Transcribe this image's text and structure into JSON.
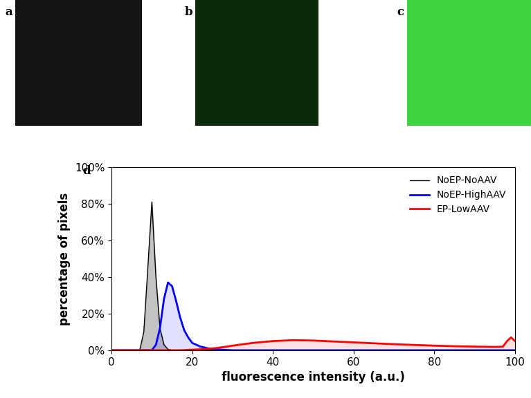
{
  "panel_labels": [
    "a",
    "b",
    "c",
    "d"
  ],
  "chart_data": {
    "type": "line",
    "xlabel": "fluorescence intensity (a.u.)",
    "ylabel": "percentage of pixels",
    "x": [
      0,
      5,
      7,
      8,
      9,
      10,
      11,
      12,
      13,
      14,
      15,
      16,
      17,
      18,
      19,
      20,
      22,
      24,
      26,
      28,
      30,
      35,
      40,
      45,
      50,
      55,
      60,
      65,
      70,
      75,
      80,
      85,
      90,
      95,
      97,
      98,
      99,
      100
    ],
    "series": [
      {
        "name": "NoEP-NoAAV",
        "color": "#000000",
        "values": [
          0,
          0,
          0,
          10,
          45,
          81,
          40,
          12,
          3,
          0.5,
          0,
          0,
          0,
          0,
          0,
          0,
          0,
          0,
          0,
          0,
          0,
          0,
          0,
          0,
          0,
          0,
          0,
          0,
          0,
          0,
          0,
          0,
          0,
          0,
          0,
          0,
          0,
          0
        ]
      },
      {
        "name": "NoEP-HighAAV",
        "color": "#0000ff",
        "values": [
          0,
          0,
          0,
          0,
          0,
          0,
          3,
          12,
          28,
          37,
          35,
          27,
          18,
          11,
          7,
          4,
          2,
          1,
          0.5,
          0.2,
          0,
          0,
          0,
          0,
          0,
          0,
          0,
          0,
          0,
          0,
          0,
          0,
          0,
          0,
          0,
          0,
          0,
          0
        ]
      },
      {
        "name": "EP-LowAAV",
        "color": "#ff0000",
        "values": [
          0,
          0,
          0,
          0,
          0,
          0,
          0,
          0,
          0,
          0,
          0,
          0,
          0,
          0.1,
          0.2,
          0.3,
          0.5,
          0.8,
          1.2,
          1.8,
          2.5,
          4,
          5,
          5.5,
          5.3,
          4.8,
          4.3,
          3.8,
          3.3,
          2.9,
          2.5,
          2.2,
          2,
          1.8,
          2,
          5,
          7,
          5
        ]
      }
    ],
    "xlim": [
      0,
      100
    ],
    "xticks": [
      0,
      20,
      40,
      60,
      80,
      100
    ],
    "ylim": [
      0,
      100
    ],
    "yticks": [
      {
        "value": 0,
        "label": "0%"
      },
      {
        "value": 20,
        "label": "20%"
      },
      {
        "value": 40,
        "label": "40%"
      },
      {
        "value": 60,
        "label": "60%"
      },
      {
        "value": 80,
        "label": "80%"
      },
      {
        "value": 100,
        "label": "100%"
      }
    ],
    "grid": false,
    "legend": "upper right"
  }
}
